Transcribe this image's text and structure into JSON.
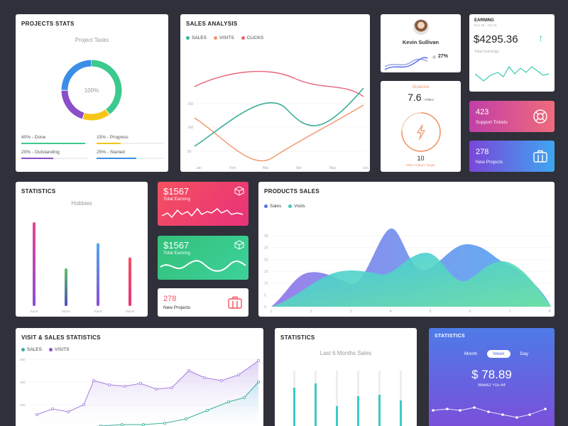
{
  "projects": {
    "title": "PROJECTS STATS",
    "subtitle": "Project Tasks",
    "center": "100%",
    "ring": [
      {
        "value": 40,
        "color": "#3cc98e"
      },
      {
        "value": 15,
        "color": "#f5c518"
      },
      {
        "value": 20,
        "color": "#8b4fc9"
      },
      {
        "value": 25,
        "color": "#3b8ee8"
      }
    ],
    "legend": [
      {
        "label": "40% - Done",
        "value": 40,
        "color": "#3cc98e"
      },
      {
        "label": "15% - Progress",
        "value": 15,
        "color": "#f5c518"
      },
      {
        "label": "20% - Outstanding",
        "value": 20,
        "color": "#8b4fc9"
      },
      {
        "label": "25% - Started",
        "value": 25,
        "color": "#3b8ee8"
      }
    ]
  },
  "sales_analysis": {
    "title": "SALES ANALYSIS",
    "legend": [
      {
        "label": "SALES",
        "color": "#3aaf9a"
      },
      {
        "label": "VISITS",
        "color": "#f0956a"
      },
      {
        "label": "CLICKS",
        "color": "#e8657a"
      }
    ],
    "yticks": [
      "150",
      "100",
      "50"
    ],
    "xticks": [
      "Jan",
      "Feb",
      "Mar",
      "Apr",
      "May",
      "Jun"
    ]
  },
  "profile": {
    "name": "Kevin Sullivan",
    "percent": "27%"
  },
  "earning": {
    "title": "EARNING",
    "date": "Nov 18 - Jun 21",
    "amount": "$4295.36",
    "label": "Total Earnings"
  },
  "distance": {
    "label": "Distance",
    "value": "7.6",
    "unit": "miles",
    "count": "10",
    "target": "Miles Today's Target",
    "progress": 0.76
  },
  "support": {
    "value": "423",
    "label": "Support Tickets"
  },
  "new_projects_blue": {
    "value": "278",
    "label": "New Projects"
  },
  "stats_hobbies": {
    "title": "STATISTICS",
    "subtitle": "Hobbies",
    "categories": [
      "Sport",
      "Music",
      "Travel",
      "Movie"
    ],
    "values": [
      100,
      45,
      75,
      58
    ],
    "colors": [
      [
        "#e84393",
        "#8a4fd6"
      ],
      [
        "#5ec46a",
        "#4b4fb8"
      ],
      [
        "#4fa8ee",
        "#8a4fd6"
      ],
      [
        "#f5505f",
        "#e8327a"
      ]
    ]
  },
  "earning_red": {
    "amount": "$1567",
    "label": "Total Earning"
  },
  "earning_green": {
    "amount": "$1567",
    "label": "Total Earning"
  },
  "new_projects_white": {
    "value": "278",
    "label": "New Projects"
  },
  "products_sales": {
    "title": "PRODUCTS SALES",
    "legend": [
      {
        "label": "Sales",
        "color": "#5b6ee8"
      },
      {
        "label": "Visits",
        "color": "#3cc9b0"
      }
    ],
    "yticks": [
      "0",
      "5",
      "10",
      "15",
      "20",
      "25",
      "30"
    ],
    "xticks": [
      "1",
      "2",
      "3",
      "4",
      "5",
      "6",
      "7",
      "8"
    ]
  },
  "visit_sales": {
    "title": "VISIT & SALES STATISTICS",
    "legend": [
      {
        "label": "SALES",
        "color": "#3aaf9a"
      },
      {
        "label": "VISITS",
        "color": "#8b4fc9"
      }
    ],
    "yticks": [
      "200",
      "150",
      "100"
    ]
  },
  "stats_months": {
    "title": "STATISTICS",
    "subtitle": "Last 6 Months Sales"
  },
  "stats_blue": {
    "title": "STATISTICS",
    "tabs": [
      "Month",
      "Week",
      "Day"
    ],
    "active": "Week",
    "amount": "$ 78.89",
    "sub": "Week2 +15.44"
  }
}
